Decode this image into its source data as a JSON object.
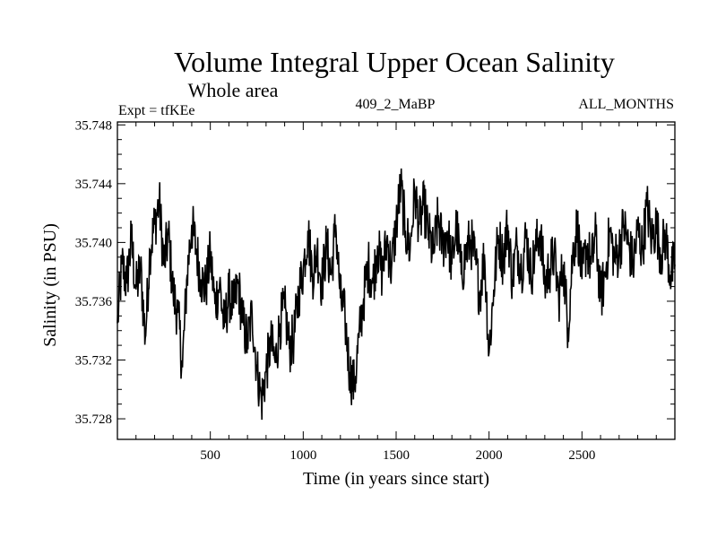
{
  "chart_data": {
    "type": "line",
    "title": "Volume Integral Upper Ocean Salinity",
    "subtitle": "Whole area",
    "annotations": {
      "left": "Expt = tfKEe",
      "center": "409_2_MaBP",
      "right": "ALL_MONTHS"
    },
    "xlabel": "Time (in years since start)",
    "ylabel": "Salinity (in PSU)",
    "xlim": [
      0,
      3000
    ],
    "ylim": [
      35.7266,
      35.7482
    ],
    "x_ticks": [
      500,
      1000,
      1500,
      2000,
      2500
    ],
    "x_tick_labels": [
      "500",
      "1000",
      "1500",
      "2000",
      "2500"
    ],
    "y_ticks": [
      35.728,
      35.732,
      35.736,
      35.74,
      35.744,
      35.748
    ],
    "y_tick_labels": [
      "35.728",
      "35.732",
      "35.736",
      "35.740",
      "35.744",
      "35.748"
    ],
    "grid": false,
    "legend": "none",
    "series": [
      {
        "color": "#000000",
        "x": [
          0,
          25,
          50,
          75,
          100,
          125,
          150,
          175,
          200,
          225,
          250,
          275,
          300,
          325,
          350,
          375,
          400,
          425,
          450,
          475,
          500,
          525,
          550,
          575,
          600,
          625,
          650,
          675,
          700,
          725,
          750,
          775,
          800,
          825,
          850,
          875,
          900,
          925,
          950,
          975,
          1000,
          1025,
          1050,
          1075,
          1100,
          1125,
          1150,
          1175,
          1200,
          1225,
          1250,
          1275,
          1300,
          1325,
          1350,
          1375,
          1400,
          1425,
          1450,
          1475,
          1500,
          1525,
          1550,
          1575,
          1600,
          1625,
          1650,
          1675,
          1700,
          1725,
          1750,
          1775,
          1800,
          1825,
          1850,
          1875,
          1900,
          1925,
          1950,
          1975,
          2000,
          2025,
          2050,
          2075,
          2100,
          2125,
          2150,
          2175,
          2200,
          2225,
          2250,
          2275,
          2300,
          2325,
          2350,
          2375,
          2400,
          2425,
          2450,
          2475,
          2500,
          2525,
          2550,
          2575,
          2600,
          2625,
          2650,
          2675,
          2700,
          2725,
          2750,
          2775,
          2800,
          2825,
          2850,
          2875,
          2900,
          2925,
          2950,
          2975,
          3000
        ],
        "y": [
          35.7345,
          35.7385,
          35.7372,
          35.7402,
          35.7368,
          35.7382,
          35.7335,
          35.7395,
          35.7412,
          35.7428,
          35.7385,
          35.7405,
          35.7365,
          35.7352,
          35.7315,
          35.7378,
          35.7412,
          35.7395,
          35.7375,
          35.7368,
          35.7392,
          35.7358,
          35.7372,
          35.7342,
          35.7365,
          35.7355,
          35.7372,
          35.7345,
          35.7332,
          35.7352,
          35.7315,
          35.7292,
          35.7312,
          35.7332,
          35.7318,
          35.7345,
          35.7355,
          35.7328,
          35.7335,
          35.7365,
          35.7382,
          35.7408,
          35.7378,
          35.7395,
          35.7372,
          35.7398,
          35.7378,
          35.7412,
          35.7362,
          35.7348,
          35.7312,
          35.7302,
          35.7335,
          35.7362,
          35.7385,
          35.7372,
          35.7398,
          35.7378,
          35.7402,
          35.7382,
          35.7412,
          35.7438,
          35.7408,
          35.7395,
          35.7435,
          35.7412,
          35.7425,
          35.7405,
          35.7392,
          35.7415,
          35.7398,
          35.7408,
          35.7385,
          35.7412,
          35.7378,
          35.7392,
          35.7402,
          35.7388,
          35.7365,
          35.7392,
          35.7325,
          35.7368,
          35.7405,
          35.7388,
          35.7412,
          35.7375,
          35.7398,
          35.7382,
          35.7405,
          35.7378,
          35.7395,
          35.7408,
          35.7372,
          35.7382,
          35.7392,
          35.7362,
          35.7385,
          35.7342,
          35.7392,
          35.7412,
          35.7375,
          35.7398,
          35.7385,
          35.7405,
          35.7362,
          35.7378,
          35.7408,
          35.7388,
          35.7395,
          35.7412,
          35.7398,
          35.7385,
          35.7408,
          35.7395,
          35.7425,
          35.7402,
          35.7412,
          35.7392,
          35.7405,
          35.7378,
          35.7385
        ]
      }
    ]
  }
}
